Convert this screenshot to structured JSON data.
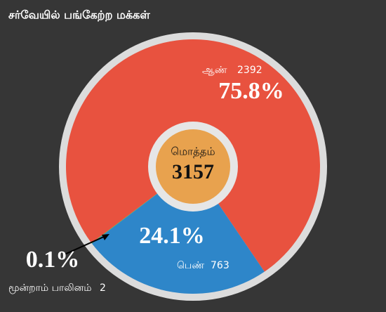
{
  "chart_data": {
    "type": "pie",
    "donut": true,
    "title": "சர்வேயில் பங்கேற்ற மக்கள்",
    "categories": [
      "ஆண்",
      "பெண்",
      "மூன்றாம் பாலினம்"
    ],
    "values": [
      2392,
      763,
      2
    ],
    "percent_labels": [
      "75.8%",
      "24.1%",
      "0.1%"
    ],
    "colors": [
      "#e8523f",
      "#2e86c9",
      "#4caf50"
    ],
    "center_label": "மொத்தம்",
    "total": 3157
  }
}
